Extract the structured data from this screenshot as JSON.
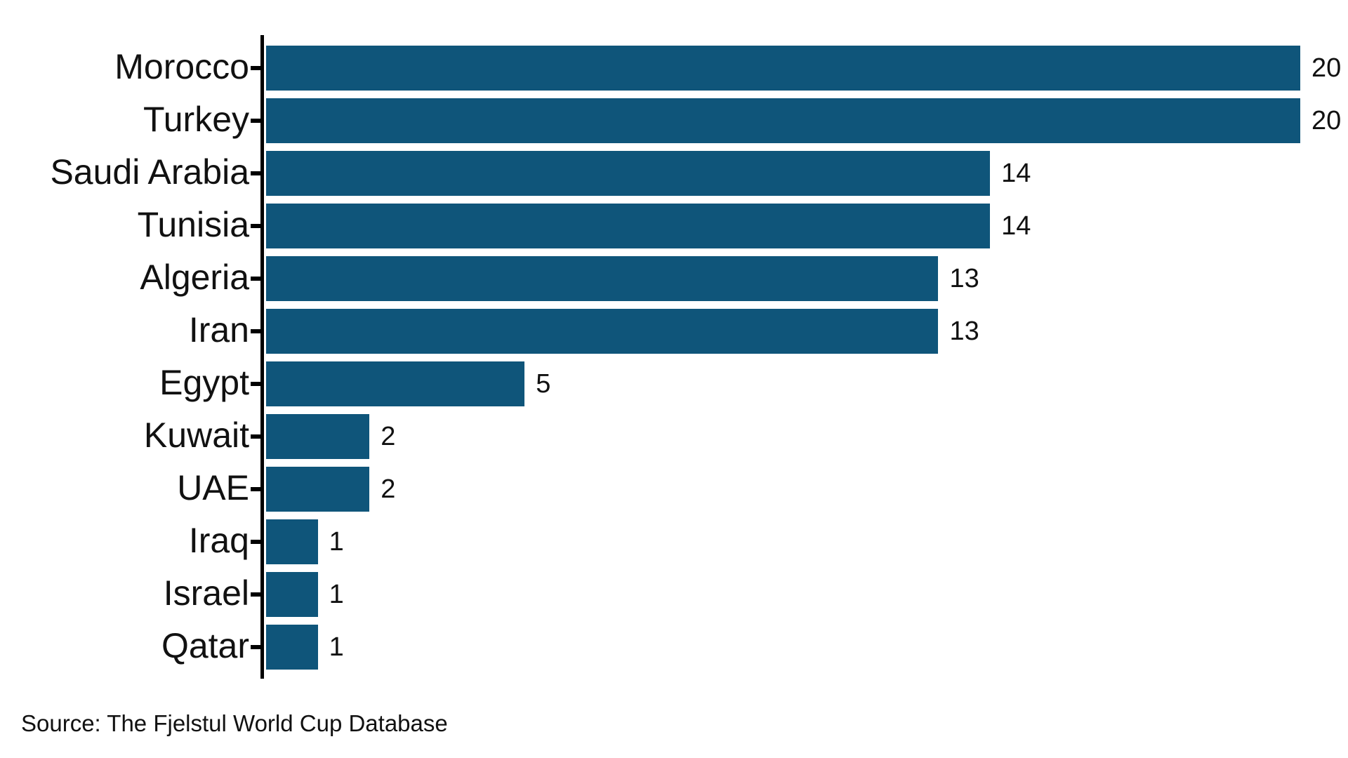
{
  "chart_data": {
    "type": "bar",
    "orientation": "horizontal",
    "title": "",
    "xlabel": "",
    "ylabel": "",
    "xlim": [
      0,
      20
    ],
    "grid": false,
    "legend": "none",
    "bar_color": "#0f557a",
    "categories": [
      "Morocco",
      "Turkey",
      "Saudi Arabia",
      "Tunisia",
      "Algeria",
      "Iran",
      "Egypt",
      "Kuwait",
      "UAE",
      "Iraq",
      "Israel",
      "Qatar"
    ],
    "values": [
      20,
      20,
      14,
      14,
      13,
      13,
      5,
      2,
      2,
      1,
      1,
      1
    ],
    "value_labels": [
      "20",
      "20",
      "14",
      "14",
      "13",
      "13",
      "5",
      "2",
      "2",
      "1",
      "1",
      "1"
    ]
  },
  "footer": {
    "source_text": "Source: The Fjelstul World Cup Database"
  }
}
